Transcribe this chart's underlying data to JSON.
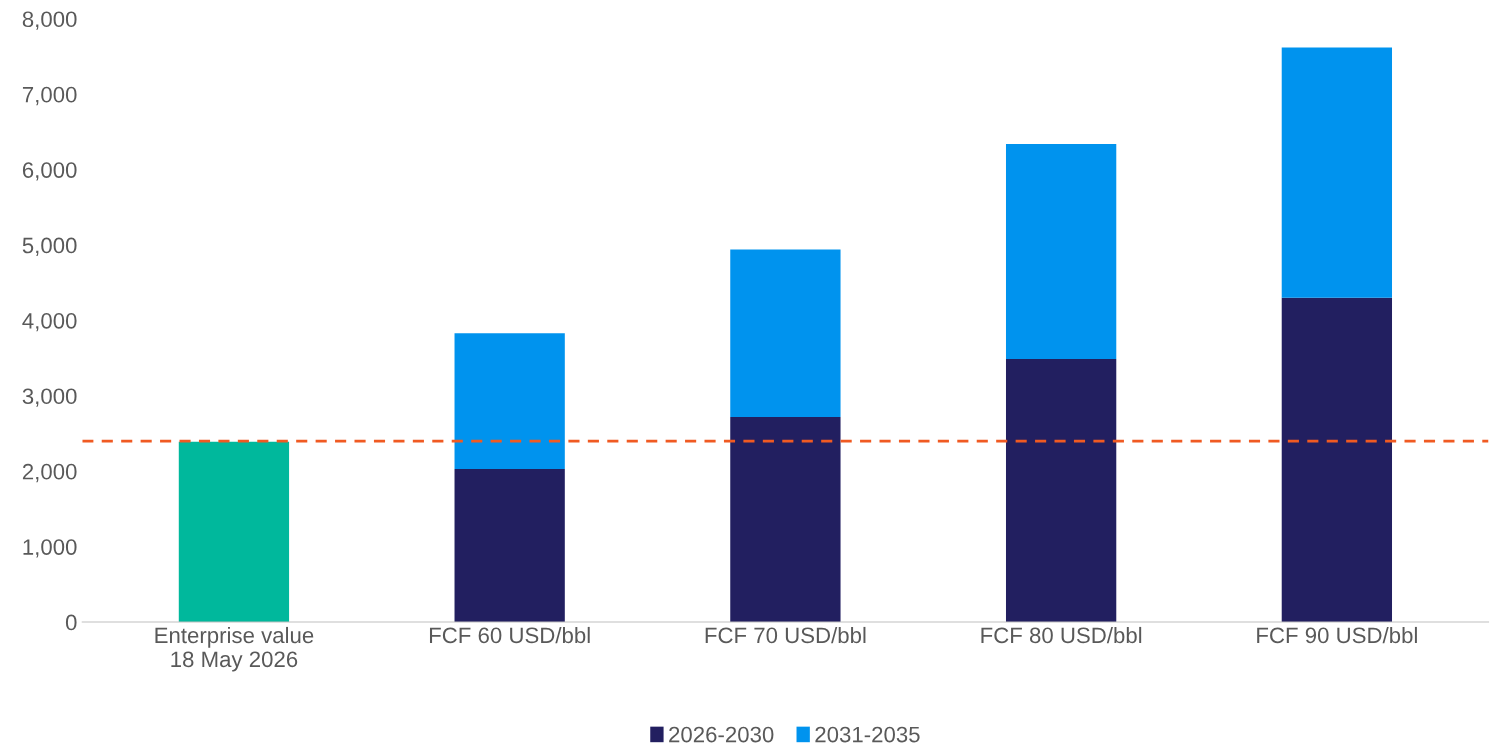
{
  "chart_data": {
    "type": "bar",
    "stacked": true,
    "categories": [
      "Enterprise value\n18 May 2026",
      "FCF 60 USD/bbl",
      "FCF 70 USD/bbl",
      "FCF 80 USD/bbl",
      "FCF 90 USD/bbl"
    ],
    "series": [
      {
        "color": "#00b89c",
        "values": [
          2390,
          null,
          null,
          null,
          null
        ]
      },
      {
        "name": "2026-2030",
        "color": "#221f60",
        "values": [
          null,
          2030,
          2720,
          3490,
          4300
        ]
      },
      {
        "name": "2031-2035",
        "color": "#0093ee",
        "values": [
          null,
          1800,
          2220,
          2850,
          3320
        ]
      }
    ],
    "ylim": [
      0,
      8000
    ],
    "yticks": [
      {
        "value": 0,
        "label": "0"
      },
      {
        "value": 1000,
        "label": "1,000"
      },
      {
        "value": 2000,
        "label": "2,000"
      },
      {
        "value": 3000,
        "label": "3,000"
      },
      {
        "value": 4000,
        "label": "4,000"
      },
      {
        "value": 5000,
        "label": "5,000"
      },
      {
        "value": 6000,
        "label": "6,000"
      },
      {
        "value": 7000,
        "label": "7,000"
      },
      {
        "value": 8000,
        "label": "8,000"
      }
    ],
    "ref_lines": [
      {
        "axis": "y",
        "value": 2400,
        "color": "#f05a22",
        "line_style": "dashed"
      }
    ],
    "grid": false,
    "legend": "bottom"
  }
}
